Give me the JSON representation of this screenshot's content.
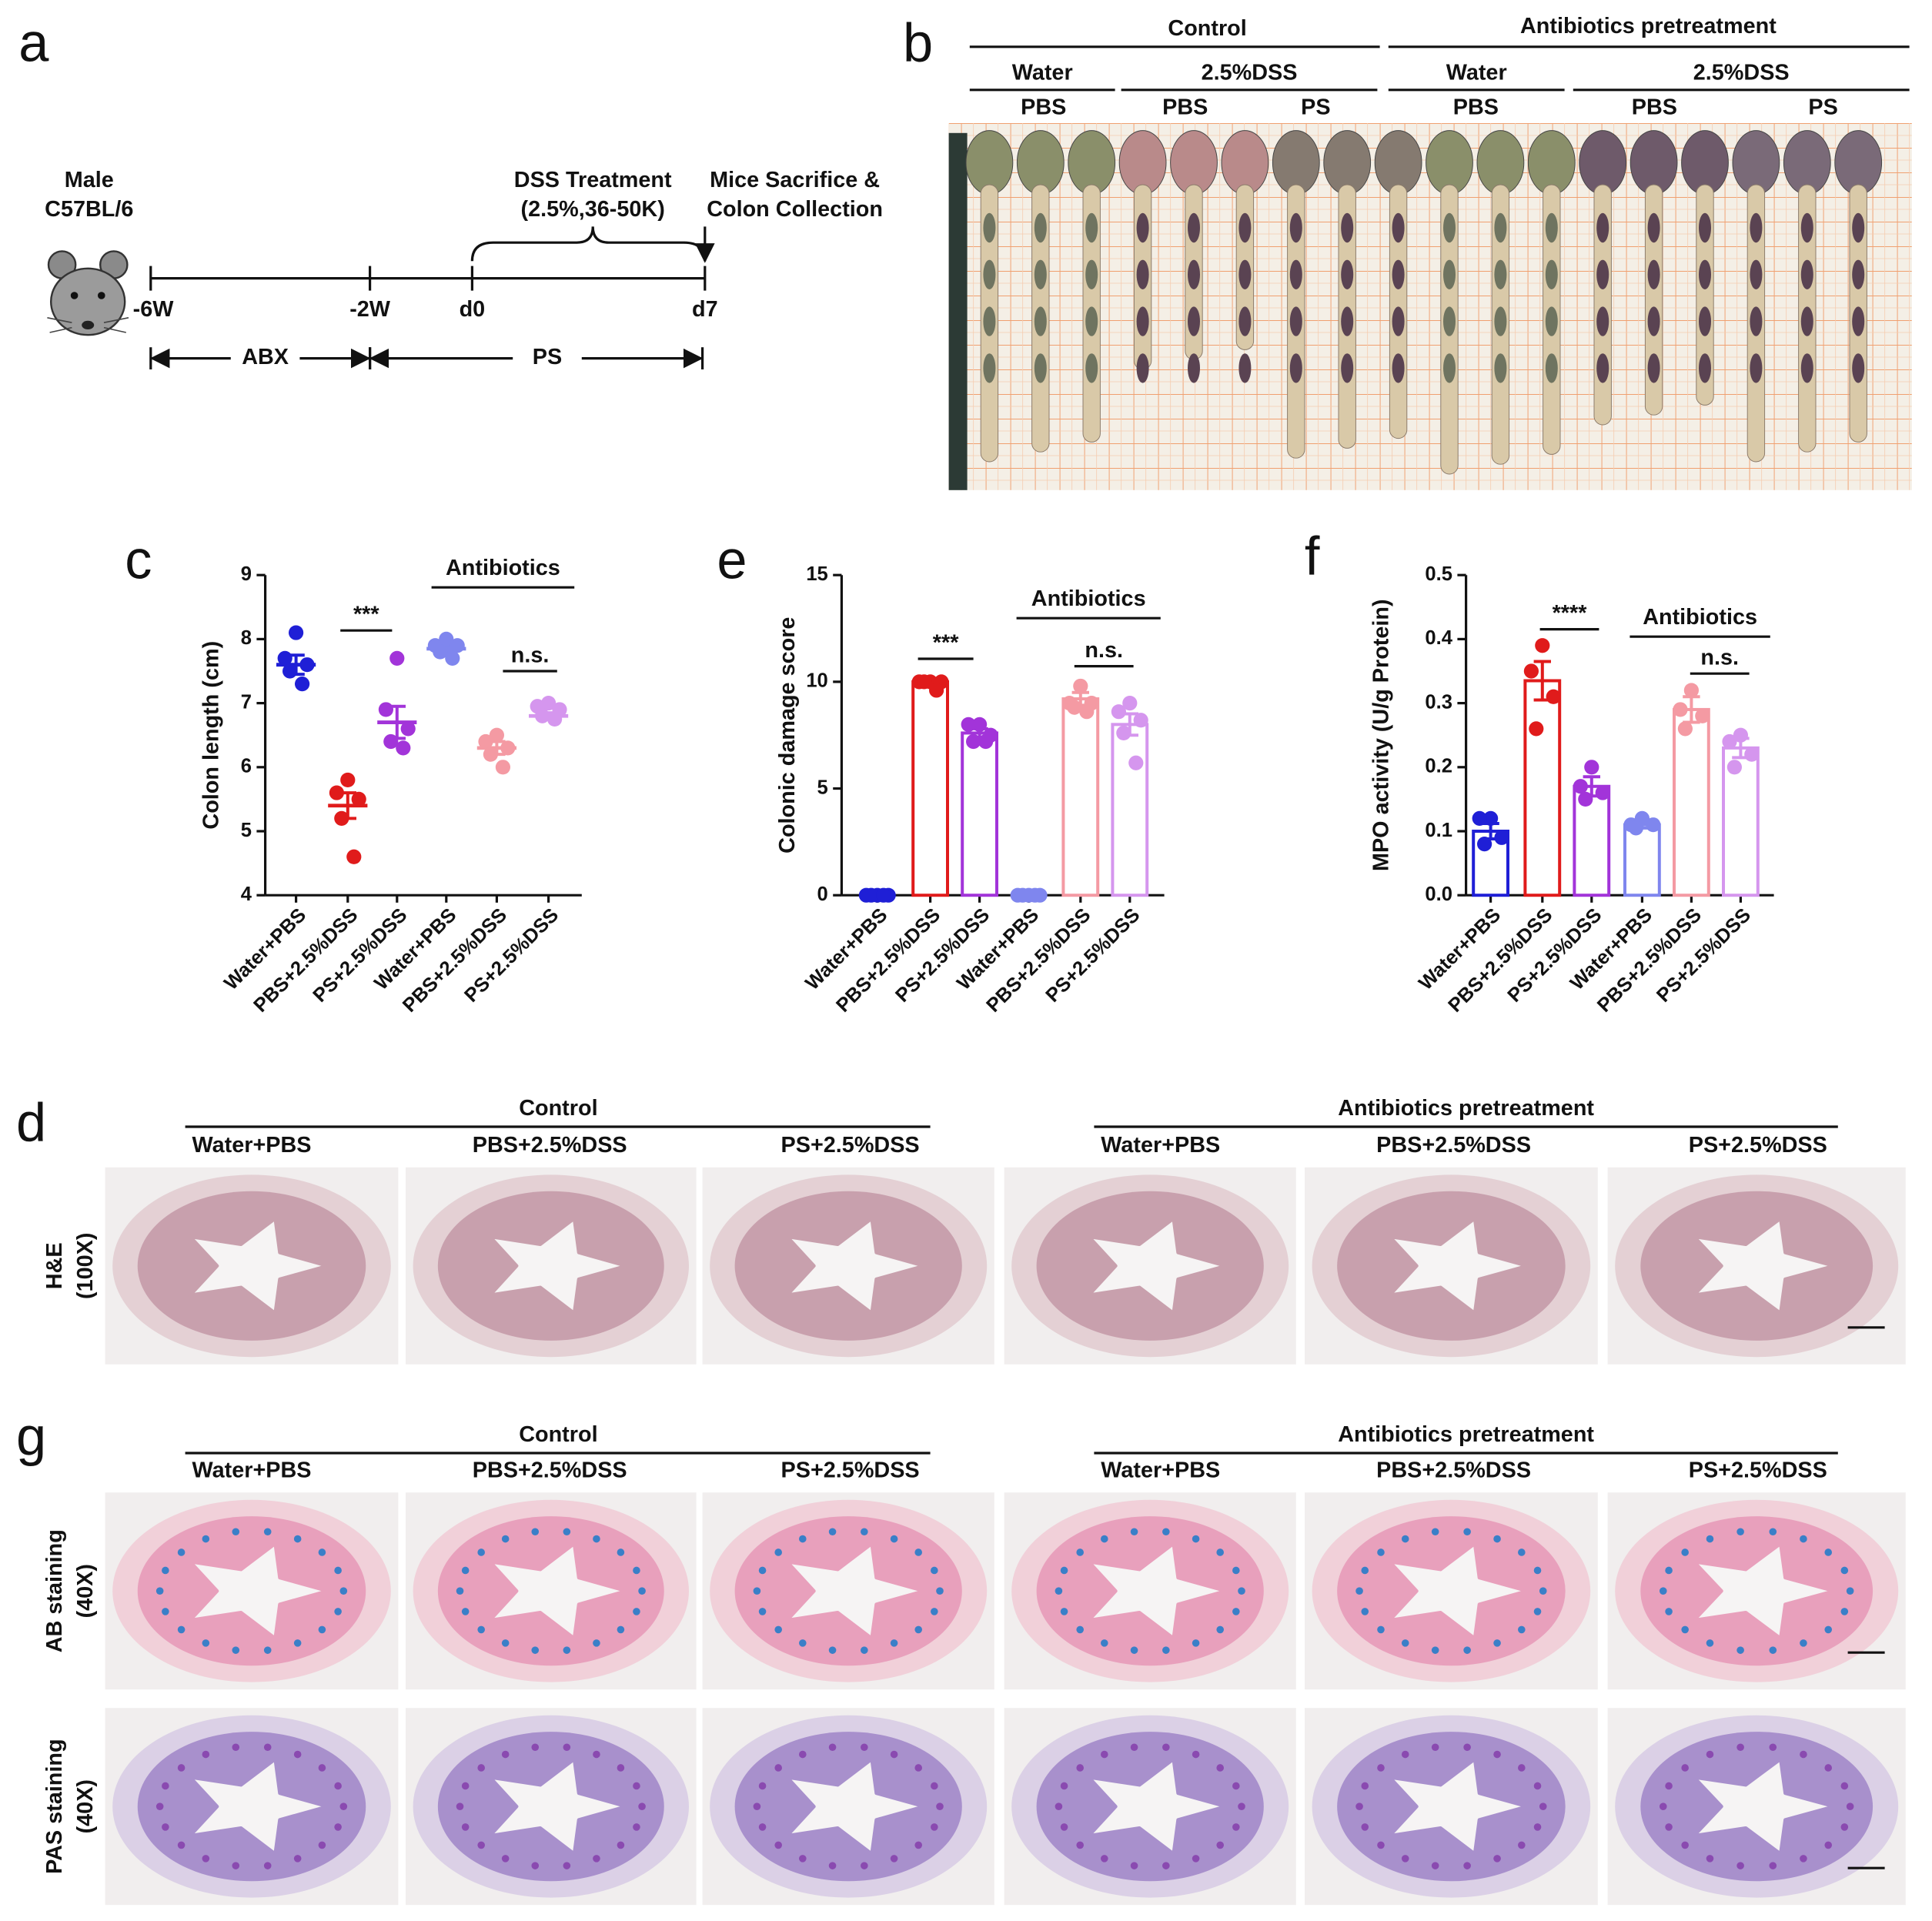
{
  "panel_labels": [
    "a",
    "b",
    "c",
    "d",
    "e",
    "f",
    "g"
  ],
  "timeline": {
    "strain": [
      "Male",
      "C57BL/6"
    ],
    "dss": [
      "DSS Treatment",
      "(2.5%,36-50K)"
    ],
    "sacrifice": [
      "Mice Sacrifice &",
      "Colon Collection"
    ],
    "timepoints": [
      "-6W",
      "-2W",
      "d0",
      "d7"
    ],
    "periods": [
      "ABX",
      "PS"
    ]
  },
  "photo": {
    "groups": [
      "Control",
      "Antibiotics pretreatment"
    ],
    "conditions": [
      "Water",
      "2.5%DSS",
      "Water",
      "2.5%DSS"
    ],
    "treatments": [
      "PBS",
      "PBS",
      "PS",
      "PBS",
      "PBS",
      "PS"
    ]
  },
  "histology_he": {
    "groups": [
      "Control",
      "Antibiotics pretreatment"
    ],
    "columns": [
      "Water+PBS",
      "PBS+2.5%DSS",
      "PS+2.5%DSS",
      "Water+PBS",
      "PBS+2.5%DSS",
      "PS+2.5%DSS"
    ],
    "row_label": [
      "H&E",
      "(100X)"
    ]
  },
  "histology_stains": {
    "groups": [
      "Control",
      "Antibiotics pretreatment"
    ],
    "columns": [
      "Water+PBS",
      "PBS+2.5%DSS",
      "PS+2.5%DSS",
      "Water+PBS",
      "PBS+2.5%DSS",
      "PS+2.5%DSS"
    ],
    "row_labels": [
      [
        "AB staining",
        "(40X)"
      ],
      [
        "PAS staining",
        "(40X)"
      ]
    ]
  },
  "chart_data": [
    {
      "type": "dot",
      "y_label": "Colon length (cm)",
      "categories": [
        "Water+PBS",
        "PBS+2.5%DSS",
        "PS+2.5%DSS",
        "Water+PBS",
        "PBS+2.5%DSS",
        "PS+2.5%DSS"
      ],
      "colors": [
        "#1f1fd6",
        "#e01b1b",
        "#a234d9",
        "#7f86ee",
        "#f49aa3",
        "#d596ee"
      ],
      "points": [
        [
          8.1,
          7.7,
          7.6,
          7.5,
          7.3
        ],
        [
          5.8,
          5.6,
          5.5,
          5.2,
          4.6
        ],
        [
          7.7,
          6.9,
          6.6,
          6.4,
          6.3
        ],
        [
          8.0,
          7.9,
          7.9,
          7.8,
          7.7
        ],
        [
          6.5,
          6.4,
          6.3,
          6.2,
          6.0
        ],
        [
          7.0,
          6.95,
          6.9,
          6.8,
          6.75
        ]
      ],
      "means": [
        7.6,
        5.4,
        6.7,
        7.85,
        6.3,
        6.8
      ],
      "sems": [
        0.15,
        0.2,
        0.25,
        0.05,
        0.1,
        0.05
      ],
      "ylim": [
        4,
        9
      ],
      "yticks": [
        4,
        5,
        6,
        7,
        8,
        9
      ],
      "annotations": [
        "***",
        "n.s."
      ],
      "bracket_label": "Antibiotics"
    },
    {
      "type": "bar",
      "y_label": "Colonic damage score",
      "categories": [
        "Water+PBS",
        "PBS+2.5%DSS",
        "PS+2.5%DSS",
        "Water+PBS",
        "PBS+2.5%DSS",
        "PS+2.5%DSS"
      ],
      "colors": [
        "#1f1fd6",
        "#e01b1b",
        "#a234d9",
        "#7f86ee",
        "#f49aa3",
        "#d596ee"
      ],
      "points": [
        [
          0,
          0,
          0,
          0,
          0
        ],
        [
          10,
          10,
          10,
          10,
          9.6
        ],
        [
          8,
          8,
          7.5,
          7.2,
          7.2
        ],
        [
          0,
          0,
          0,
          0,
          0
        ],
        [
          9.8,
          9,
          9,
          8.8,
          8.6
        ],
        [
          9,
          8.6,
          8.2,
          7.6,
          6.2
        ]
      ],
      "means": [
        0,
        10,
        7.6,
        0,
        9.2,
        8.0
      ],
      "sems": [
        0,
        0.1,
        0.2,
        0,
        0.3,
        0.5
      ],
      "ylim": [
        0,
        15
      ],
      "yticks": [
        0,
        5,
        10,
        15
      ],
      "annotations": [
        "***",
        "n.s."
      ],
      "bracket_label": "Antibiotics"
    },
    {
      "type": "bar",
      "y_label": "MPO activity (U/g Protein)",
      "categories": [
        "Water+PBS",
        "PBS+2.5%DSS",
        "PS+2.5%DSS",
        "Water+PBS",
        "PBS+2.5%DSS",
        "PS+2.5%DSS"
      ],
      "colors": [
        "#1f1fd6",
        "#e01b1b",
        "#a234d9",
        "#7f86ee",
        "#f49aa3",
        "#d596ee"
      ],
      "points": [
        [
          0.12,
          0.12,
          0.09,
          0.08
        ],
        [
          0.39,
          0.35,
          0.31,
          0.26
        ],
        [
          0.2,
          0.17,
          0.16,
          0.15
        ],
        [
          0.12,
          0.11,
          0.11,
          0.105
        ],
        [
          0.32,
          0.29,
          0.28,
          0.26
        ],
        [
          0.25,
          0.24,
          0.22,
          0.2
        ]
      ],
      "means": [
        0.1,
        0.335,
        0.17,
        0.11,
        0.29,
        0.23
      ],
      "sems": [
        0.012,
        0.03,
        0.015,
        0.005,
        0.02,
        0.015
      ],
      "ylim": [
        0,
        0.5
      ],
      "yticks": [
        {
          "value": 0,
          "label": "0.0"
        },
        0.1,
        0.2,
        0.3,
        0.4,
        0.5
      ],
      "annotations": [
        "****",
        "n.s."
      ],
      "bracket_label": "Antibiotics"
    }
  ]
}
